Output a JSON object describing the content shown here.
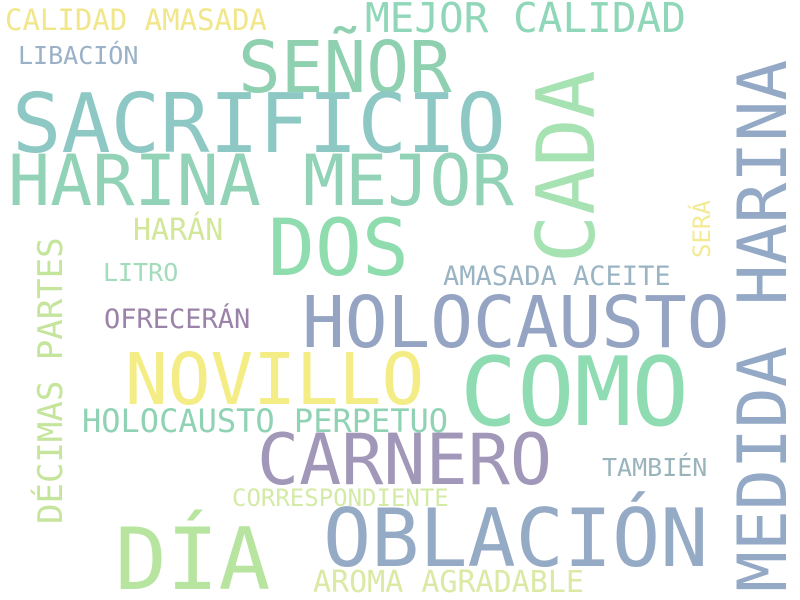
{
  "word_cloud": {
    "words": [
      {
        "text": "CALIDAD AMASADA",
        "color": "#f1e78a"
      },
      {
        "text": "MEJOR CALIDAD",
        "color": "#8fd7b8"
      },
      {
        "text": "LIBACIÓN",
        "color": "#9ab1c7"
      },
      {
        "text": "SEÑOR",
        "color": "#8fd0b0"
      },
      {
        "text": "SACRIFICIO",
        "color": "#8ec8c4"
      },
      {
        "text": "HARINA MEJOR",
        "color": "#92d3b7"
      },
      {
        "text": "DOS",
        "color": "#8fdcae"
      },
      {
        "text": "CADA",
        "color": "#a6e2b2"
      },
      {
        "text": "HARINA",
        "color": "#9aafc8"
      },
      {
        "text": "SERÁ",
        "color": "#f3ea93"
      },
      {
        "text": "HARÁN",
        "color": "#d3e79a"
      },
      {
        "text": "LITRO",
        "color": "#a3dcbb"
      },
      {
        "text": "AMASADA ACEITE",
        "color": "#9ab4c3"
      },
      {
        "text": "DÉCIMAS PARTES",
        "color": "#c5e59c"
      },
      {
        "text": "HOLOCAUSTO",
        "color": "#95a4c2"
      },
      {
        "text": "OFRECERÁN",
        "color": "#9a82a8"
      },
      {
        "text": "NOVILLO",
        "color": "#f4ec84"
      },
      {
        "text": "COMO",
        "color": "#8fdcb2"
      },
      {
        "text": "HOLOCAUSTO PERPETUO",
        "color": "#90d2b4"
      },
      {
        "text": "CARNERO",
        "color": "#a197b8"
      },
      {
        "text": "TAMBIÉN",
        "color": "#9ab4bc"
      },
      {
        "text": "CORRESPONDIENTE",
        "color": "#d4eaa7"
      },
      {
        "text": "OBLACIÓN",
        "color": "#95aac5"
      },
      {
        "text": "DÍA",
        "color": "#b7e49e"
      },
      {
        "text": "AROMA AGRADABLE",
        "color": "#dae9a3"
      }
    ],
    "vertical_words": [
      "CADA",
      "HARINA",
      "SERÁ",
      "DÉCIMAS PARTES",
      "MEDIDA"
    ],
    "medida": {
      "text": "MEDIDA",
      "color": "#93a9c5"
    }
  }
}
